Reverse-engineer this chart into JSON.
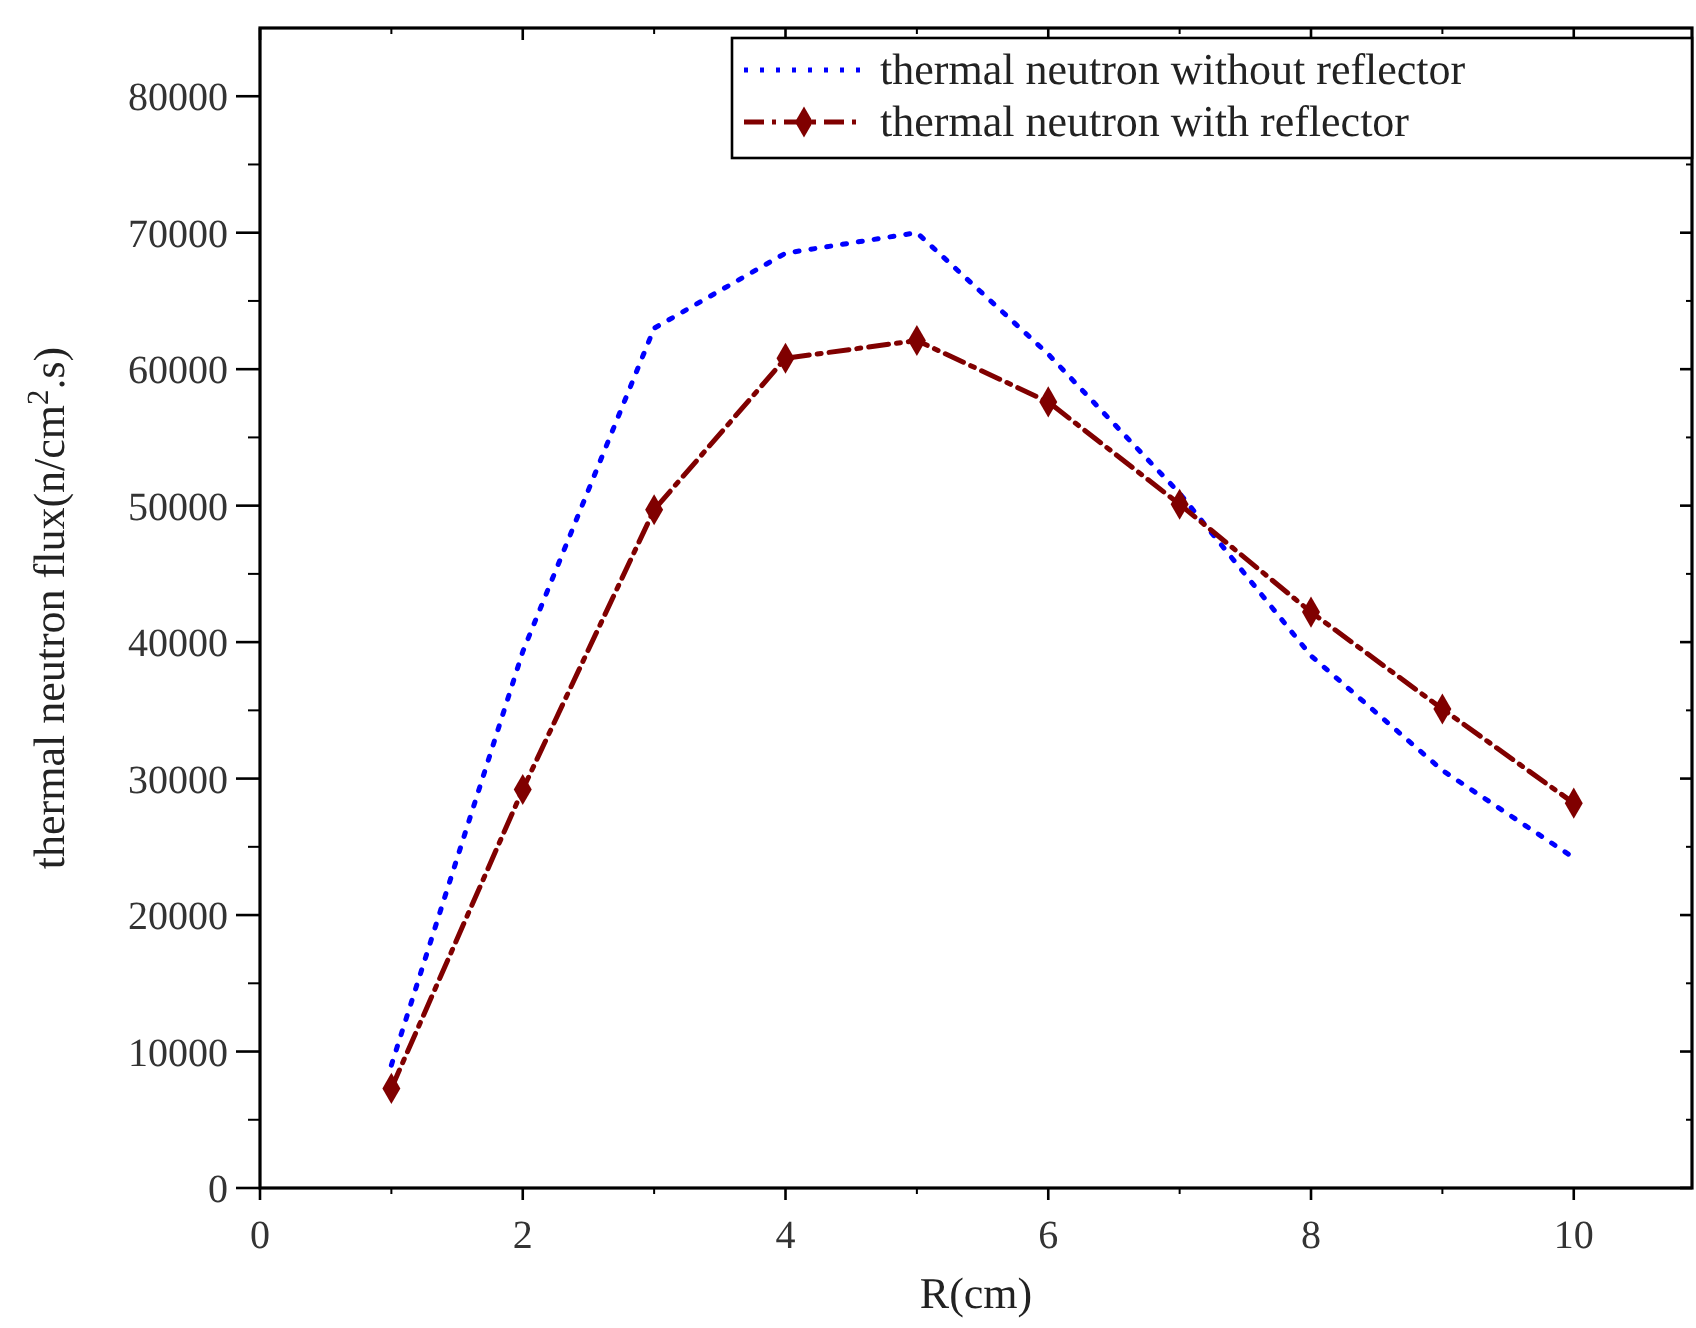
{
  "chart_data": {
    "type": "line",
    "xlabel": "R(cm)",
    "ylabel": "thermal neutron flux(n/cm$^{2}$.s)",
    "x": [
      1,
      2,
      3,
      4,
      5,
      6,
      7,
      8,
      9,
      10
    ],
    "series": [
      {
        "name": "thermal neutron without reflector",
        "color": "#0000ff",
        "line_style": "dotted",
        "marker": "none",
        "values": [
          9000,
          39300,
          63000,
          68500,
          70000,
          61100,
          50900,
          39000,
          30600,
          24200
        ]
      },
      {
        "name": "thermal neutron with reflector",
        "color": "#800000",
        "line_style": "dashed",
        "marker": "diamond",
        "values": [
          7300,
          29200,
          49700,
          60800,
          62100,
          57600,
          50100,
          42200,
          35100,
          28200
        ]
      }
    ],
    "xlim": [
      0,
      10.9
    ],
    "xticks": [
      0,
      2,
      4,
      6,
      8,
      10
    ],
    "ylim": [
      0,
      85000
    ],
    "yticks": [
      0,
      10000,
      20000,
      30000,
      40000,
      50000,
      60000,
      70000,
      80000
    ],
    "legend": "top right",
    "grid": false
  }
}
